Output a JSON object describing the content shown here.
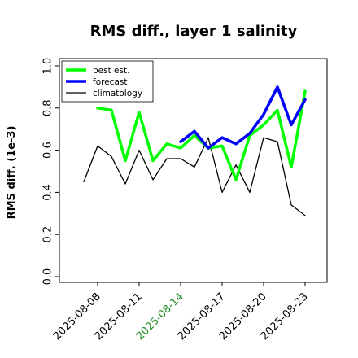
{
  "chart_data": {
    "type": "line",
    "title": "RMS diff., layer 1 salinity",
    "xlabel": "",
    "ylabel": "RMS diff. (1e-3)",
    "ylim": [
      0.0,
      1.0
    ],
    "yticks": [
      "0.0",
      "0.2",
      "0.4",
      "0.6",
      "0.8",
      "1.0"
    ],
    "xticks": [
      {
        "label": "2025-08-08",
        "color": "#000000"
      },
      {
        "label": "2025-08-11",
        "color": "#000000"
      },
      {
        "label": "2025-08-14",
        "color": "#228B22"
      },
      {
        "label": "2025-08-17",
        "color": "#000000"
      },
      {
        "label": "2025-08-20",
        "color": "#000000"
      },
      {
        "label": "2025-08-23",
        "color": "#000000"
      }
    ],
    "legend_position": "top-left",
    "grid": false,
    "series": [
      {
        "name": "best est.",
        "color": "#00ff00",
        "x": [
          "2025-08-08",
          "2025-08-09",
          "2025-08-10",
          "2025-08-11",
          "2025-08-12",
          "2025-08-13",
          "2025-08-14",
          "2025-08-15",
          "2025-08-16",
          "2025-08-17",
          "2025-08-18",
          "2025-08-19",
          "2025-08-20",
          "2025-08-21",
          "2025-08-22",
          "2025-08-23"
        ],
        "values": [
          0.8,
          0.79,
          0.55,
          0.78,
          0.55,
          0.63,
          0.61,
          0.67,
          0.61,
          0.62,
          0.46,
          0.67,
          0.72,
          0.79,
          0.52,
          0.88
        ]
      },
      {
        "name": "forecast",
        "color": "#0000ff",
        "x": [
          "2025-08-14",
          "2025-08-15",
          "2025-08-16",
          "2025-08-17",
          "2025-08-18",
          "2025-08-19",
          "2025-08-20",
          "2025-08-21",
          "2025-08-22",
          "2025-08-23"
        ],
        "values": [
          0.64,
          0.69,
          0.61,
          0.66,
          0.63,
          0.68,
          0.77,
          0.9,
          0.72,
          0.84
        ]
      },
      {
        "name": "climatology",
        "color": "#000000",
        "x": [
          "2025-08-07",
          "2025-08-08",
          "2025-08-09",
          "2025-08-10",
          "2025-08-11",
          "2025-08-12",
          "2025-08-13",
          "2025-08-14",
          "2025-08-15",
          "2025-08-16",
          "2025-08-17",
          "2025-08-18",
          "2025-08-19",
          "2025-08-20",
          "2025-08-21",
          "2025-08-22",
          "2025-08-23"
        ],
        "values": [
          0.45,
          0.62,
          0.57,
          0.44,
          0.6,
          0.46,
          0.56,
          0.56,
          0.52,
          0.66,
          0.4,
          0.53,
          0.4,
          0.66,
          0.64,
          0.34,
          0.29
        ]
      }
    ]
  }
}
